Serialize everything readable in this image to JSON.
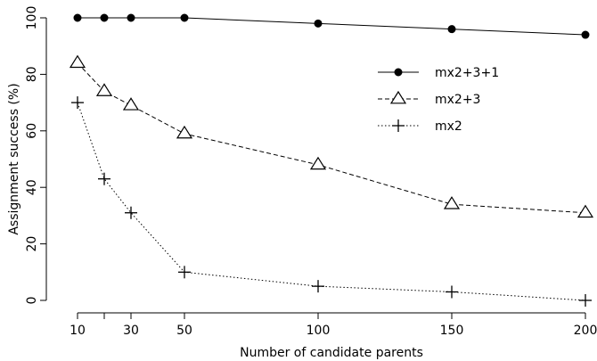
{
  "chart_data": {
    "type": "line",
    "xlabel": "Number of candidate parents",
    "ylabel": "Assignment success (%)",
    "xlim": [
      10,
      200
    ],
    "ylim": [
      0,
      100
    ],
    "x_tick_values": [
      10,
      20,
      30,
      50,
      100,
      150,
      200
    ],
    "x_tick_labels": [
      "10",
      "",
      "30",
      "50",
      "100",
      "150",
      "200"
    ],
    "y_tick_values": [
      0,
      20,
      40,
      60,
      80,
      100
    ],
    "y_tick_labels": [
      "0",
      "20",
      "40",
      "60",
      "80",
      "100"
    ],
    "legend_position": "top-right",
    "x": [
      10,
      20,
      30,
      50,
      100,
      150,
      200
    ],
    "series": [
      {
        "name": "mx2+3+1",
        "values": [
          100,
          100,
          100,
          100,
          98,
          96,
          94
        ],
        "marker": "filled-circle",
        "line": "solid"
      },
      {
        "name": "mx2+3",
        "values": [
          84,
          74,
          69,
          59,
          48,
          34,
          31
        ],
        "marker": "open-triangle",
        "line": "dashed"
      },
      {
        "name": "mx2",
        "values": [
          70,
          43,
          31,
          10,
          5,
          3,
          0
        ],
        "marker": "plus",
        "line": "dotted"
      }
    ]
  }
}
